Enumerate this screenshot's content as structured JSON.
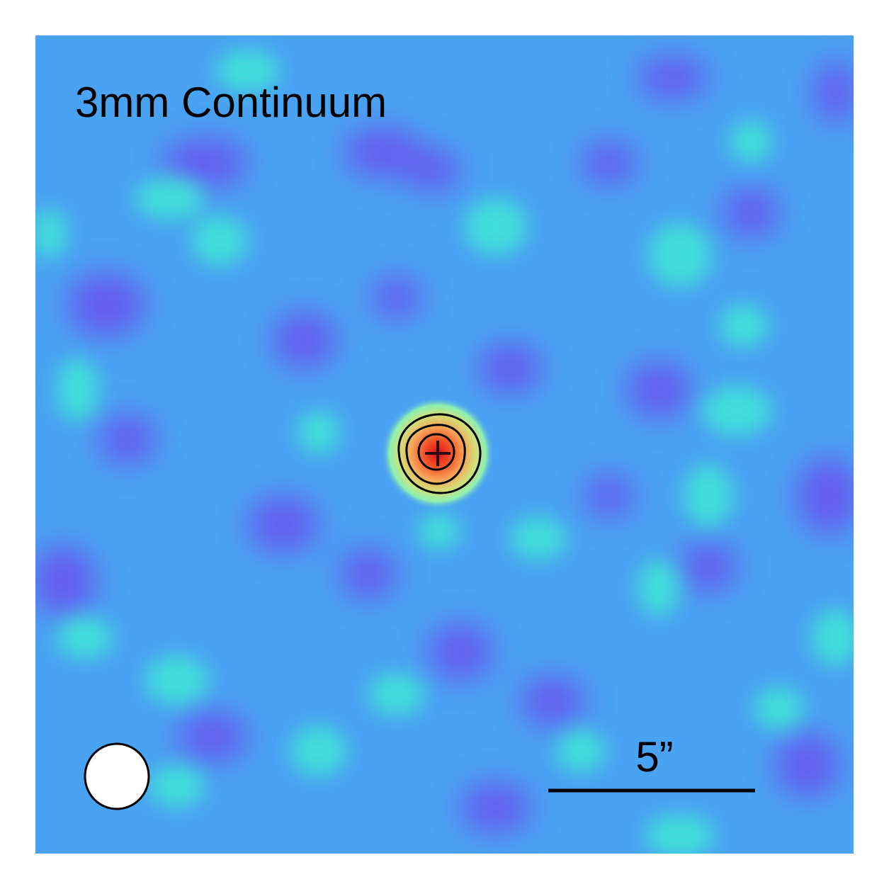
{
  "figure": {
    "title": "3mm Continuum",
    "scalebar_label": "5”"
  },
  "colors": {
    "background": "#4aa2f2",
    "low": "#6a52ef",
    "mid": "#3fe8d6",
    "peak": "#e0241c",
    "contour": "#000000",
    "beam": "#ffffff"
  },
  "icons": {
    "source_marker": "plus-marker-icon",
    "beam": "beam-ellipse-icon"
  }
}
